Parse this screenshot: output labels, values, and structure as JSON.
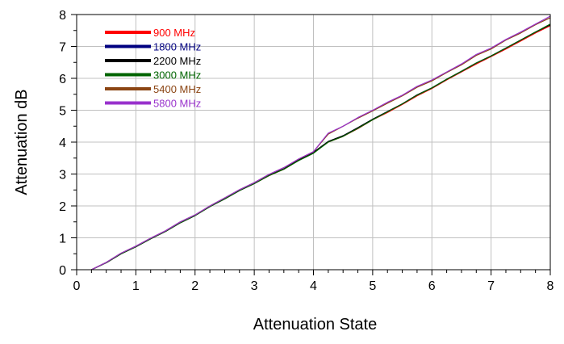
{
  "chart_data": {
    "type": "line",
    "title": "",
    "xlabel": "Attenuation  State",
    "ylabel": "Attenuation  dB",
    "xlim": [
      0,
      8
    ],
    "ylim": [
      0,
      8
    ],
    "x_ticks": [
      0,
      1,
      2,
      3,
      4,
      5,
      6,
      7,
      8
    ],
    "y_ticks": [
      0,
      1,
      2,
      3,
      4,
      5,
      6,
      7,
      8
    ],
    "grid": true,
    "legend_position": "top-left",
    "x": [
      0.25,
      0.5,
      0.75,
      1.0,
      1.25,
      1.5,
      1.75,
      2.0,
      2.25,
      2.5,
      2.75,
      3.0,
      3.25,
      3.5,
      3.75,
      4.0,
      4.25,
      4.5,
      4.75,
      5.0,
      5.25,
      5.5,
      5.75,
      6.0,
      6.25,
      6.5,
      6.75,
      7.0,
      7.25,
      7.5,
      7.75,
      8.0
    ],
    "series": [
      {
        "name": "900 MHz",
        "color": "#ff0000",
        "values": [
          0.0,
          0.22,
          0.5,
          0.72,
          0.97,
          1.2,
          1.47,
          1.7,
          1.98,
          2.22,
          2.48,
          2.7,
          2.95,
          3.15,
          3.43,
          3.68,
          4.0,
          4.18,
          4.42,
          4.7,
          4.93,
          5.18,
          5.45,
          5.68,
          5.95,
          6.2,
          6.45,
          6.68,
          6.92,
          7.17,
          7.42,
          7.65
        ]
      },
      {
        "name": "1800 MHz",
        "color": "#000080",
        "values": [
          0.0,
          0.22,
          0.5,
          0.72,
          0.97,
          1.2,
          1.47,
          1.7,
          1.98,
          2.22,
          2.48,
          2.7,
          2.96,
          3.16,
          3.44,
          3.68,
          4.02,
          4.2,
          4.45,
          4.72,
          4.96,
          5.2,
          5.48,
          5.7,
          5.97,
          6.22,
          6.48,
          6.7,
          6.95,
          7.2,
          7.45,
          7.68
        ]
      },
      {
        "name": "2200 MHz",
        "color": "#000000",
        "values": [
          0.0,
          0.22,
          0.5,
          0.72,
          0.97,
          1.2,
          1.47,
          1.7,
          1.98,
          2.22,
          2.48,
          2.7,
          2.96,
          3.16,
          3.44,
          3.68,
          4.02,
          4.2,
          4.45,
          4.72,
          4.96,
          5.2,
          5.48,
          5.7,
          5.97,
          6.22,
          6.48,
          6.7,
          6.95,
          7.2,
          7.45,
          7.68
        ]
      },
      {
        "name": "3000 MHz",
        "color": "#006400",
        "values": [
          0.0,
          0.22,
          0.5,
          0.72,
          0.97,
          1.2,
          1.47,
          1.7,
          1.98,
          2.22,
          2.48,
          2.7,
          2.95,
          3.15,
          3.42,
          3.65,
          4.0,
          4.18,
          4.43,
          4.7,
          4.95,
          5.2,
          5.47,
          5.7,
          5.97,
          6.22,
          6.48,
          6.7,
          6.95,
          7.2,
          7.45,
          7.7
        ]
      },
      {
        "name": "5400 MHz",
        "color": "#8b4513",
        "values": [
          0.0,
          0.23,
          0.52,
          0.74,
          0.99,
          1.22,
          1.5,
          1.72,
          2.0,
          2.25,
          2.51,
          2.73,
          2.99,
          3.2,
          3.47,
          3.7,
          4.25,
          4.5,
          4.75,
          4.98,
          5.22,
          5.45,
          5.72,
          5.92,
          6.18,
          6.42,
          6.72,
          6.92,
          7.2,
          7.42,
          7.68,
          7.9
        ]
      },
      {
        "name": "5800 MHz",
        "color": "#9932cc",
        "values": [
          0.0,
          0.23,
          0.52,
          0.74,
          0.99,
          1.22,
          1.5,
          1.72,
          2.0,
          2.25,
          2.51,
          2.73,
          2.99,
          3.2,
          3.47,
          3.7,
          4.28,
          4.5,
          4.77,
          5.0,
          5.25,
          5.47,
          5.75,
          5.95,
          6.2,
          6.45,
          6.75,
          6.95,
          7.22,
          7.45,
          7.7,
          7.95
        ]
      }
    ]
  }
}
